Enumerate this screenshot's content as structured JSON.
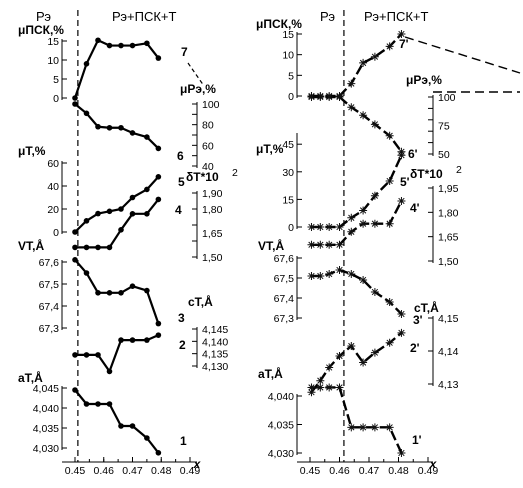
{
  "chart_data": [
    {
      "type": "line",
      "panel": "left",
      "phase_labels": [
        "Рэ",
        "Рэ+ПСК+Т"
      ],
      "phase_boundary_x": 0.451,
      "x_ticks": [
        "0.45",
        "0.46",
        "0.47",
        "0.48",
        "0.49"
      ],
      "x_label": "x",
      "x_range": [
        0.444,
        0.492
      ],
      "marker": "circle",
      "series": [
        {
          "name": "7",
          "axis": "μПСК,%",
          "x": [
            0.45,
            0.454,
            0.458,
            0.462,
            0.466,
            0.47,
            0.475,
            0.479
          ],
          "y": [
            0,
            9,
            15.2,
            13.8,
            13.8,
            13.8,
            14.4,
            10.5
          ]
        },
        {
          "name": "6",
          "axis": "μРэ,%",
          "x": [
            0.45,
            0.454,
            0.458,
            0.462,
            0.466,
            0.47,
            0.475,
            0.479
          ],
          "y": [
            100,
            91,
            78,
            77,
            77,
            72,
            68,
            57
          ]
        },
        {
          "name": "5",
          "axis": "μТ,%",
          "x": [
            0.45,
            0.454,
            0.458,
            0.462,
            0.466,
            0.47,
            0.475,
            0.479
          ],
          "y": [
            0,
            9.7,
            16,
            18,
            20,
            30,
            37,
            48
          ]
        },
        {
          "name": "4",
          "axis": "δТ*10^2",
          "x": [
            0.45,
            0.454,
            0.458,
            0.462,
            0.466,
            0.47,
            0.475,
            0.479
          ],
          "y": [
            1.56,
            1.56,
            1.56,
            1.56,
            1.67,
            1.77,
            1.77,
            1.86
          ]
        },
        {
          "name": "3",
          "axis": "VТ,Å³",
          "x": [
            0.45,
            0.454,
            0.458,
            0.462,
            0.466,
            0.47,
            0.475,
            0.479
          ],
          "y": [
            67.61,
            67.55,
            67.46,
            67.46,
            67.46,
            67.49,
            67.47,
            67.32
          ]
        },
        {
          "name": "2",
          "axis": "cТ,Å",
          "x": [
            0.45,
            0.454,
            0.458,
            0.462,
            0.466,
            0.47,
            0.475,
            0.479
          ],
          "y": [
            4.1345,
            4.1345,
            4.1345,
            4.1278,
            4.1405,
            4.1405,
            4.1405,
            4.1425
          ]
        },
        {
          "name": "1",
          "axis": "aТ,Å",
          "x": [
            0.45,
            0.454,
            0.458,
            0.462,
            0.466,
            0.47,
            0.475,
            0.479
          ],
          "y": [
            4.0445,
            4.041,
            4.041,
            4.041,
            4.0355,
            4.0355,
            4.0325,
            4.0288
          ]
        }
      ]
    },
    {
      "type": "line",
      "panel": "right",
      "phase_labels": [
        "Рэ",
        "Рэ+ПСК+Т"
      ],
      "phase_boundary_x": 0.4615,
      "x_ticks": [
        "0.45",
        "0.46",
        "0.47",
        "0.48",
        "0.49"
      ],
      "x_label": "x",
      "x_range": [
        0.444,
        0.492
      ],
      "marker": "asterisk",
      "series": [
        {
          "name": "7'",
          "axis": "μПСК,%",
          "x": [
            0.4505,
            0.4535,
            0.4565,
            0.46,
            0.464,
            0.468,
            0.472,
            0.477,
            0.481
          ],
          "y": [
            0,
            0,
            0,
            0,
            3,
            8,
            9.5,
            12,
            15
          ]
        },
        {
          "name": "6'",
          "axis": "μРэ,%",
          "x": [
            0.4505,
            0.4535,
            0.4565,
            0.46,
            0.464,
            0.468,
            0.472,
            0.477,
            0.481
          ],
          "y": [
            100,
            100,
            100,
            100,
            91,
            84,
            76,
            66,
            52
          ]
        },
        {
          "name": "5'",
          "axis": "μТ,%",
          "x": [
            0.4505,
            0.4535,
            0.4565,
            0.46,
            0.464,
            0.468,
            0.472,
            0.477,
            0.481
          ],
          "y": [
            0,
            0,
            0,
            0,
            5,
            9,
            17,
            25,
            39
          ]
        },
        {
          "name": "4'",
          "axis": "δТ*10^2",
          "x": [
            0.4505,
            0.4535,
            0.4565,
            0.46,
            0.464,
            0.468,
            0.472,
            0.477,
            0.481
          ],
          "y": [
            1.6,
            1.6,
            1.6,
            1.6,
            1.68,
            1.73,
            1.73,
            1.73,
            1.87
          ]
        },
        {
          "name": "3'",
          "axis": "VТ,Å³",
          "x": [
            0.4505,
            0.4535,
            0.4565,
            0.46,
            0.464,
            0.468,
            0.472,
            0.477,
            0.481
          ],
          "y": [
            67.51,
            67.51,
            67.52,
            67.54,
            67.52,
            67.49,
            67.43,
            67.38,
            67.32
          ]
        },
        {
          "name": "2'",
          "axis": "cТ,Å",
          "x": [
            0.4505,
            0.4535,
            0.4565,
            0.46,
            0.464,
            0.468,
            0.472,
            0.477,
            0.481
          ],
          "y": [
            4.1275,
            4.131,
            4.135,
            4.1385,
            4.1415,
            4.1365,
            4.1395,
            4.1425,
            4.1455
          ]
        },
        {
          "name": "1'",
          "axis": "aТ,Å",
          "x": [
            0.4505,
            0.4535,
            0.4565,
            0.46,
            0.464,
            0.468,
            0.472,
            0.477,
            0.481
          ],
          "y": [
            4.0415,
            4.0415,
            4.0415,
            4.0415,
            4.0345,
            4.0345,
            4.0345,
            4.0345,
            4.03
          ]
        }
      ]
    }
  ],
  "axes_text": {
    "mu_psk": "μПСК,%",
    "mu_re": "μРэ,%",
    "mu_t": "μТ,%",
    "delta": "δТ*10",
    "delta_exp": "2",
    "v_t": "VТ,Å",
    "c_t": "cТ,Å",
    "a_t": "aТ,Å"
  }
}
